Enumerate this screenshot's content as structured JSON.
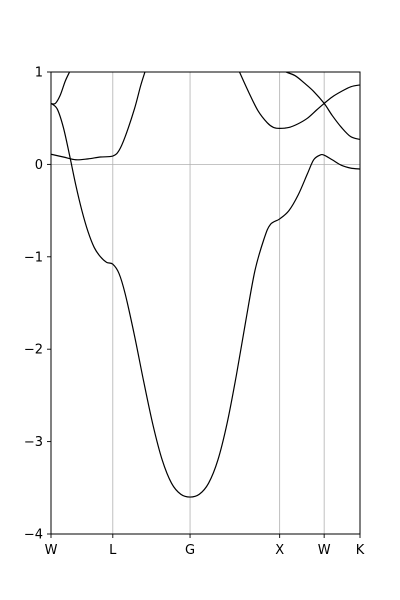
{
  "chart_data": {
    "type": "line",
    "title": "",
    "xlabel": "",
    "ylabel": "",
    "ylim": [
      -4,
      1
    ],
    "yticks": [
      1,
      0,
      -1,
      -2,
      -3,
      -4
    ],
    "ytick_labels": [
      "1",
      "0",
      "−1",
      "−2",
      "−3",
      "−4"
    ],
    "xlim": [
      0,
      5.0
    ],
    "xticks": [
      {
        "label": "W",
        "x": 0.0
      },
      {
        "label": "L",
        "x": 1.0
      },
      {
        "label": "G",
        "x": 2.25
      },
      {
        "label": "X",
        "x": 3.7
      },
      {
        "label": "W",
        "x": 4.42
      },
      {
        "label": "K",
        "x": 5.0
      }
    ],
    "grid": true,
    "horizontal_reference": 0,
    "line_color": "#000000",
    "grid_color": "#b0b0b0",
    "series": [
      {
        "points": [
          [
            0,
            0.66
          ],
          [
            0.07,
            0.66
          ],
          [
            0.15,
            0.75
          ],
          [
            0.23,
            0.9
          ],
          [
            0.3,
            1.0
          ]
        ]
      },
      {
        "points": [
          [
            0,
            0.66
          ],
          [
            0.1,
            0.6
          ],
          [
            0.2,
            0.4
          ],
          [
            0.3,
            0.1
          ],
          [
            0.4,
            -0.22
          ],
          [
            0.5,
            -0.5
          ],
          [
            0.6,
            -0.73
          ],
          [
            0.7,
            -0.9
          ],
          [
            0.8,
            -1.0
          ],
          [
            0.9,
            -1.06
          ],
          [
            1.0,
            -1.08
          ],
          [
            1.1,
            -1.18
          ],
          [
            1.2,
            -1.4
          ],
          [
            1.35,
            -1.85
          ],
          [
            1.5,
            -2.35
          ],
          [
            1.65,
            -2.82
          ],
          [
            1.8,
            -3.2
          ],
          [
            1.95,
            -3.45
          ],
          [
            2.1,
            -3.57
          ],
          [
            2.25,
            -3.6
          ],
          [
            2.4,
            -3.57
          ],
          [
            2.55,
            -3.45
          ],
          [
            2.7,
            -3.2
          ],
          [
            2.85,
            -2.8
          ],
          [
            3.0,
            -2.28
          ],
          [
            3.15,
            -1.7
          ],
          [
            3.3,
            -1.15
          ],
          [
            3.45,
            -0.8
          ],
          [
            3.55,
            -0.65
          ],
          [
            3.7,
            -0.59
          ],
          [
            3.85,
            -0.5
          ],
          [
            4.0,
            -0.33
          ],
          [
            4.15,
            -0.1
          ],
          [
            4.25,
            0.05
          ],
          [
            4.35,
            0.1
          ],
          [
            4.42,
            0.1
          ],
          [
            4.55,
            0.05
          ],
          [
            4.7,
            -0.01
          ],
          [
            4.85,
            -0.04
          ],
          [
            5.0,
            -0.05
          ]
        ]
      },
      {
        "points": [
          [
            0,
            0.11
          ],
          [
            0.2,
            0.08
          ],
          [
            0.4,
            0.05
          ],
          [
            0.6,
            0.06
          ],
          [
            0.8,
            0.08
          ],
          [
            1.0,
            0.09
          ],
          [
            1.1,
            0.15
          ],
          [
            1.2,
            0.3
          ],
          [
            1.35,
            0.6
          ],
          [
            1.45,
            0.85
          ],
          [
            1.52,
            1.0
          ]
        ]
      },
      {
        "points": [
          [
            3.05,
            1.0
          ],
          [
            3.2,
            0.78
          ],
          [
            3.35,
            0.58
          ],
          [
            3.5,
            0.45
          ],
          [
            3.6,
            0.4
          ],
          [
            3.7,
            0.39
          ],
          [
            3.85,
            0.4
          ],
          [
            4.0,
            0.44
          ],
          [
            4.15,
            0.5
          ],
          [
            4.3,
            0.59
          ],
          [
            4.42,
            0.66
          ],
          [
            4.55,
            0.73
          ],
          [
            4.7,
            0.79
          ],
          [
            4.85,
            0.84
          ],
          [
            5.0,
            0.86
          ]
        ]
      },
      {
        "points": [
          [
            3.8,
            1.0
          ],
          [
            3.95,
            0.96
          ],
          [
            4.1,
            0.88
          ],
          [
            4.25,
            0.79
          ],
          [
            4.42,
            0.66
          ],
          [
            4.55,
            0.53
          ],
          [
            4.7,
            0.4
          ],
          [
            4.85,
            0.3
          ],
          [
            5.0,
            0.27
          ]
        ]
      }
    ]
  }
}
